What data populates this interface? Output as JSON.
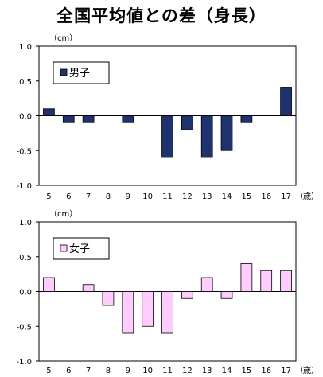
{
  "title": "全国平均値との差（身長）",
  "colors": {
    "male": "#1f3270",
    "female": "#ffccff",
    "axis": "#000000"
  },
  "chart_data": [
    {
      "type": "bar",
      "unit_label": "（cm）",
      "x_suffix": "（歳）",
      "ylim": [
        -1.0,
        1.0
      ],
      "y_ticks": [
        "1.0",
        "0.5",
        "0.0",
        "-0.5",
        "-1.0"
      ],
      "y_tick_values": [
        1.0,
        0.5,
        0.0,
        -0.5,
        -1.0
      ],
      "categories": [
        "5",
        "6",
        "7",
        "8",
        "9",
        "10",
        "11",
        "12",
        "13",
        "14",
        "15",
        "16",
        "17"
      ],
      "series": [
        {
          "name": "男子",
          "values": [
            0.1,
            -0.1,
            -0.1,
            0.0,
            -0.1,
            0.0,
            -0.6,
            -0.2,
            -0.6,
            -0.5,
            -0.1,
            0.0,
            0.4
          ]
        }
      ],
      "legend": "top-left",
      "grid": false
    },
    {
      "type": "bar",
      "unit_label": "（cm）",
      "x_suffix": "（歳）",
      "ylim": [
        -1.0,
        1.0
      ],
      "y_ticks": [
        "1.0",
        "0.5",
        "0.0",
        "-0.5",
        "-1.0"
      ],
      "y_tick_values": [
        1.0,
        0.5,
        0.0,
        -0.5,
        -1.0
      ],
      "categories": [
        "5",
        "6",
        "7",
        "8",
        "9",
        "10",
        "11",
        "12",
        "13",
        "14",
        "15",
        "16",
        "17"
      ],
      "series": [
        {
          "name": "女子",
          "values": [
            0.2,
            0.0,
            0.1,
            -0.2,
            -0.6,
            -0.5,
            -0.6,
            -0.1,
            0.2,
            -0.1,
            0.4,
            0.3,
            0.3
          ]
        }
      ],
      "legend": "top-left",
      "grid": false
    }
  ]
}
